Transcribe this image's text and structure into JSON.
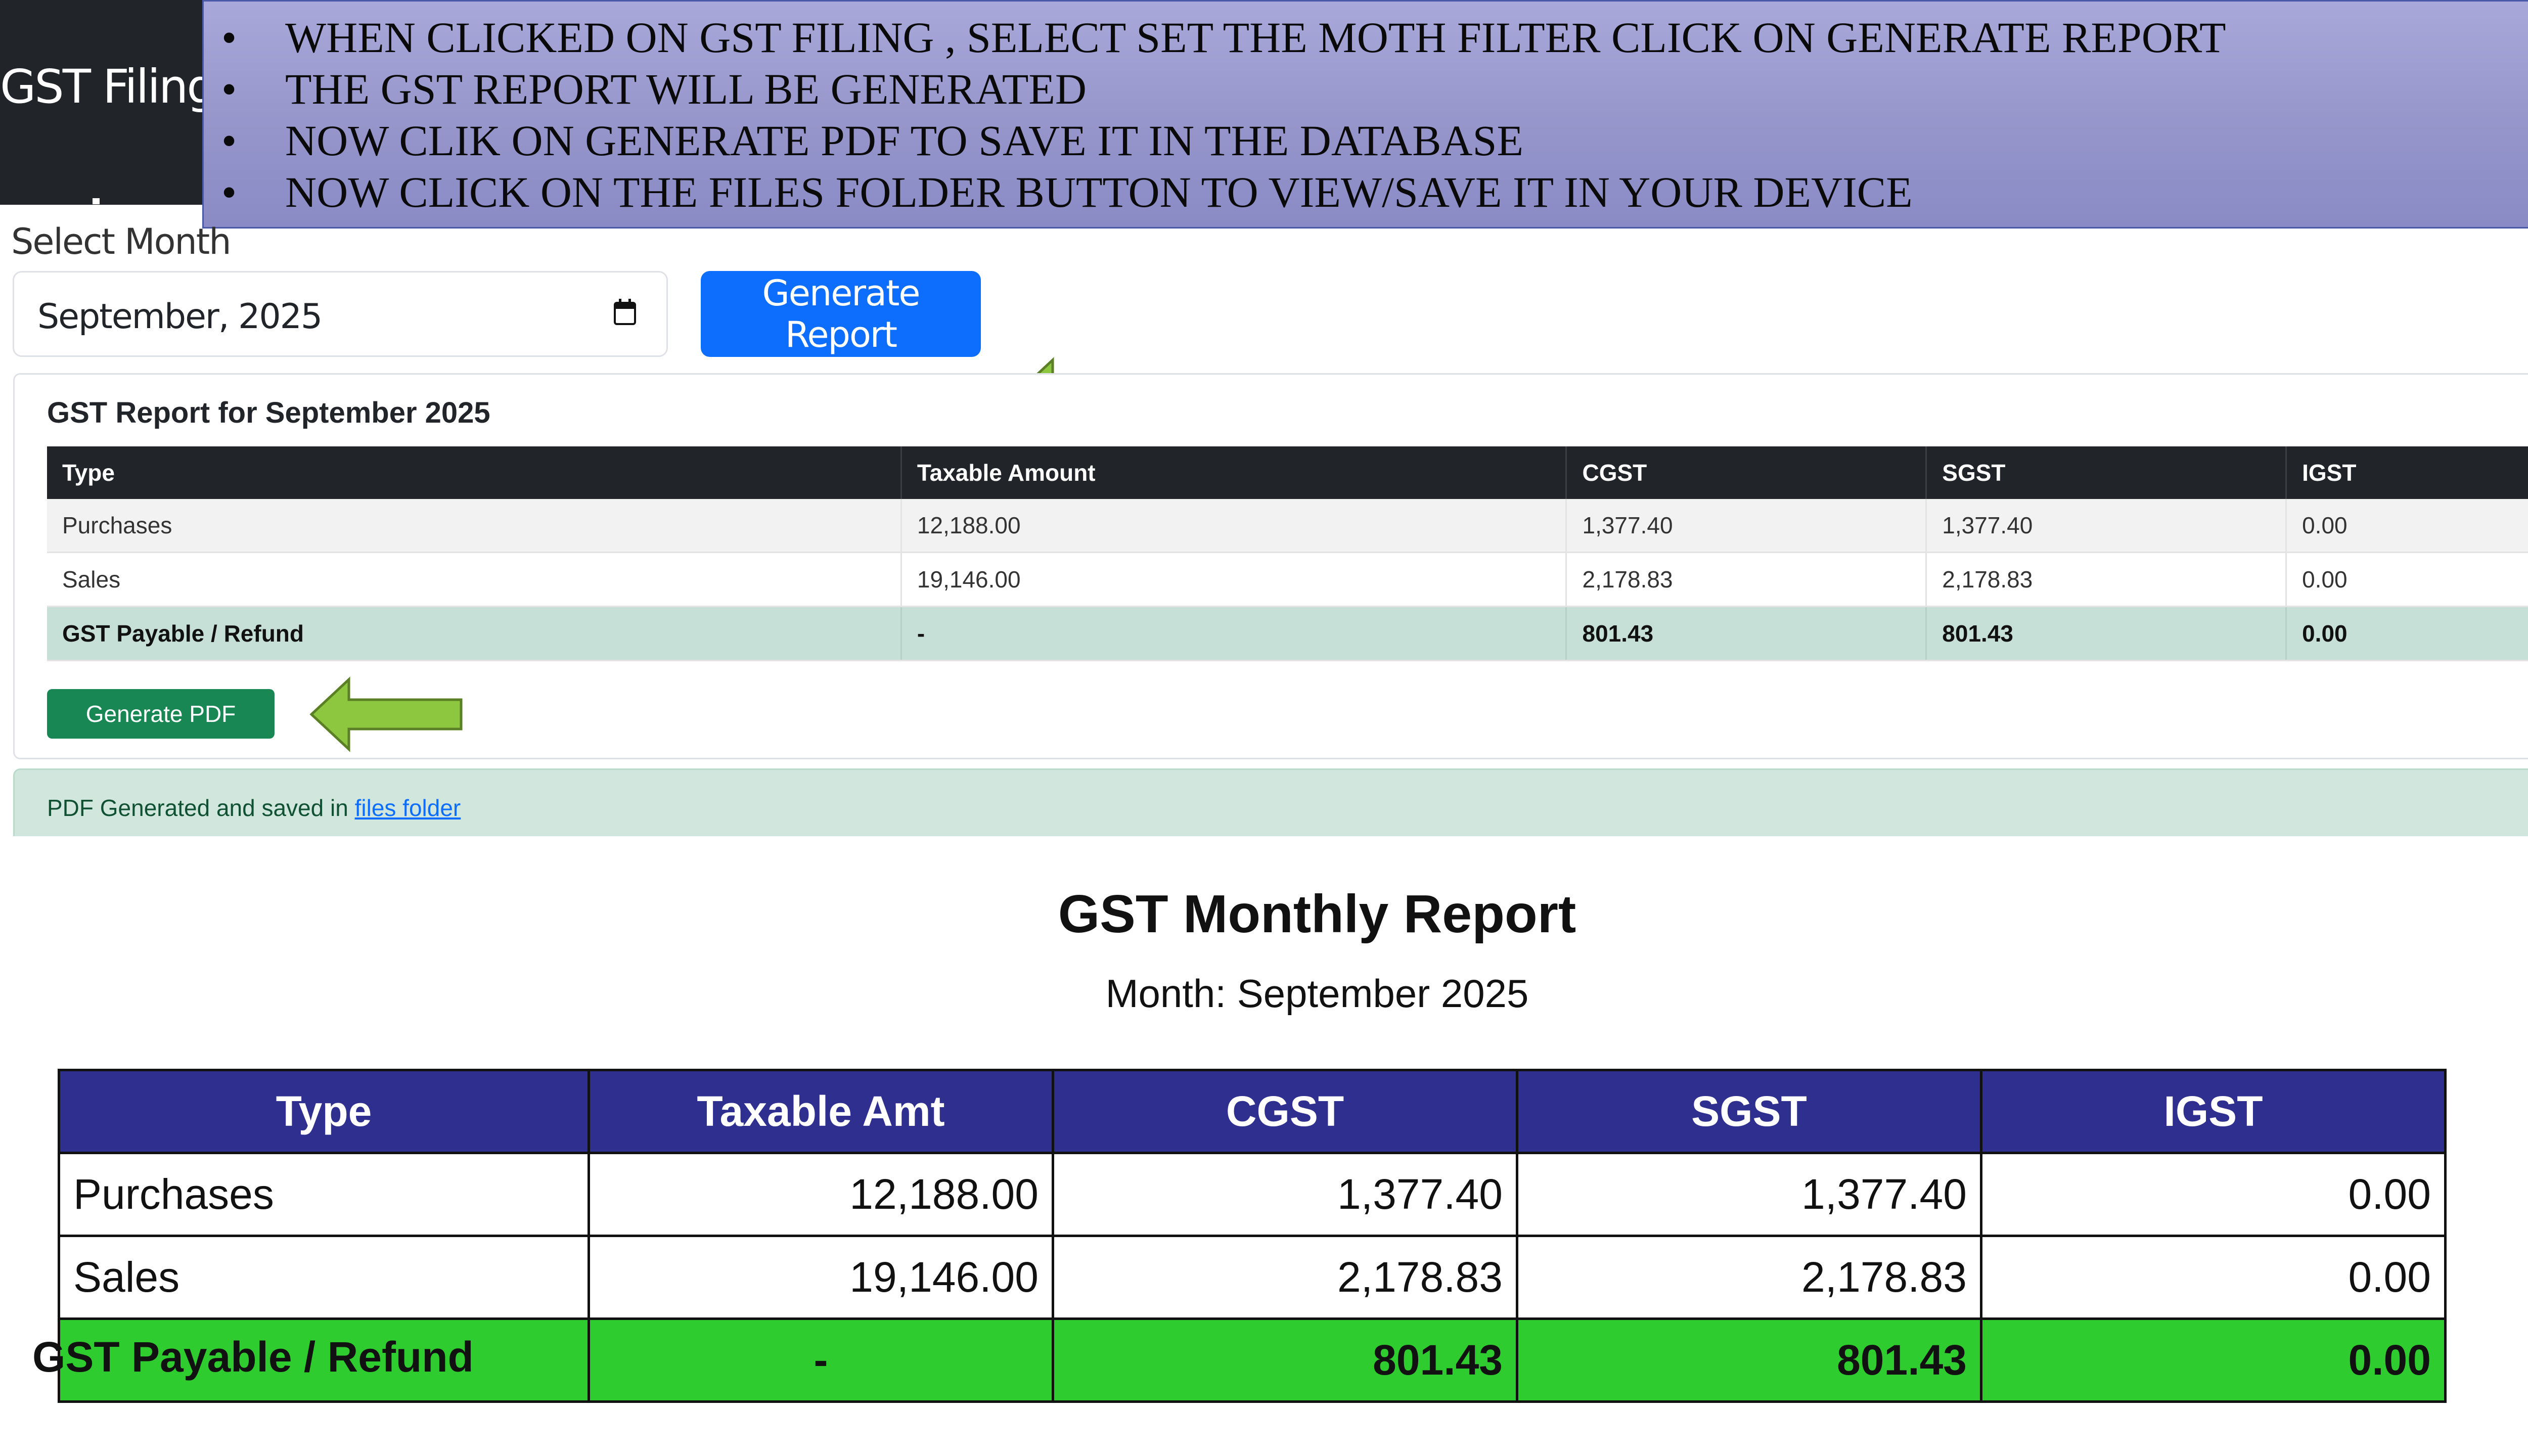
{
  "header": {
    "title": "GST Filing"
  },
  "instructions": [
    "WHEN CLICKED ON GST FILING , SELECT  SET THE MOTH FILTER CLICK ON GENERATE REPORT",
    "THE GST REPORT WILL BE GENERATED",
    "NOW CLIK ON GENERATE PDF  TO SAVE IT IN THE DATABASE",
    "NOW CLICK ON THE FILES FOLDER BUTTON TO VIEW/SAVE IT IN YOUR DEVICE"
  ],
  "month_filter": {
    "label": "Select Month",
    "value": "September, 2025",
    "button_label": "Generate Report"
  },
  "report": {
    "title": "GST Report for September 2025",
    "columns": [
      "Type",
      "Taxable Amount",
      "CGST",
      "SGST",
      "IGST"
    ],
    "rows": [
      [
        "Purchases",
        "12,188.00",
        "1,377.40",
        "1,377.40",
        "0.00"
      ],
      [
        "Sales",
        "19,146.00",
        "2,178.83",
        "2,178.83",
        "0.00"
      ],
      [
        "GST Payable / Refund",
        "-",
        "801.43",
        "801.43",
        "0.00"
      ]
    ],
    "pdf_button_label": "Generate PDF"
  },
  "alert": {
    "text": "PDF Generated and saved in ",
    "link": "files folder"
  },
  "pdf_preview": {
    "title": "GST Monthly Report",
    "subtitle": "Month: September 2025",
    "columns": [
      "Type",
      "Taxable Amt",
      "CGST",
      "SGST",
      "IGST"
    ],
    "rows": [
      [
        "Purchases",
        "12,188.00",
        "1,377.40",
        "1,377.40",
        "0.00"
      ],
      [
        "Sales",
        "19,146.00",
        "2,178.83",
        "2,178.83",
        "0.00"
      ],
      [
        "GST Payable / Refund",
        "-",
        "801.43",
        "801.43",
        "0.00"
      ]
    ]
  },
  "colors": {
    "primary": "#0d6efd",
    "success": "#198754",
    "table_header": "#212529",
    "payable_row": "#c7e0d7",
    "pdf_header": "#2f2f90",
    "pdf_payable": "#2ecc2e",
    "arrow": "#8dc63f"
  },
  "icons": [
    "calendar-icon",
    "left-arrow-annotation"
  ]
}
